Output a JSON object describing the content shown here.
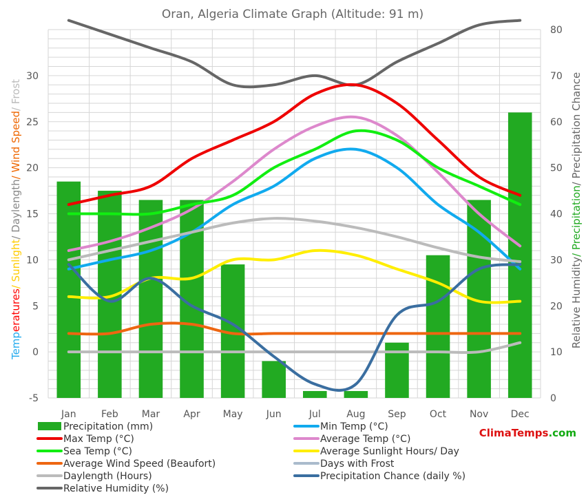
{
  "chart_data": {
    "type": "line",
    "title": "Oran, Algeria Climate Graph (Altitude: 91 m)",
    "categories": [
      "Jan",
      "Feb",
      "Mar",
      "Apr",
      "May",
      "Jun",
      "Jul",
      "Aug",
      "Sep",
      "Oct",
      "Nov",
      "Dec"
    ],
    "left_axis": {
      "range": [
        -5,
        35
      ],
      "ticks": [
        -5,
        0,
        5,
        10,
        15,
        20,
        25,
        30
      ],
      "label_parts": [
        {
          "text": "Temperatures",
          "color": "#22aaee",
          "split": 4,
          "color2": "#ff0000"
        },
        {
          "text": "/ Sunlight",
          "color": "#ffcc00"
        },
        {
          "text": "/ Daylength",
          "color": "#888888"
        },
        {
          "text": "/ Wind Speed",
          "color": "#ee6600"
        },
        {
          "text": "/ Frost",
          "color": "#bbbbbb"
        }
      ]
    },
    "right_axis": {
      "range": [
        0,
        80
      ],
      "ticks": [
        0,
        10,
        20,
        30,
        40,
        50,
        60,
        70,
        80
      ],
      "label_parts": [
        {
          "text": "Relative Humidity",
          "color": "#666666"
        },
        {
          "text": "/ Precipitation",
          "color": "#22aa22"
        },
        {
          "text": "/ Precipitation Chance",
          "color": "#666666"
        }
      ]
    },
    "bars": {
      "name": "Precipitation (mm)",
      "axis": "right",
      "color": "#22aa22",
      "values": [
        47,
        45,
        43,
        43,
        29,
        8,
        1.5,
        1.5,
        12,
        31,
        43,
        62
      ]
    },
    "series": [
      {
        "name": "Relative Humidity (%)",
        "axis": "right",
        "color": "#666666",
        "values": [
          82,
          79,
          76,
          73,
          68,
          68,
          70,
          68,
          73,
          77,
          81,
          82
        ]
      },
      {
        "name": "Max Temp (°C)",
        "axis": "left",
        "color": "#ee0000",
        "values": [
          16,
          17,
          18,
          21,
          23,
          25,
          28,
          29,
          27,
          23,
          19,
          17
        ]
      },
      {
        "name": "Average Temp (°C)",
        "axis": "left",
        "color": "#dd88cc",
        "values": [
          11,
          12,
          13.5,
          15.5,
          18.5,
          22,
          24.5,
          25.5,
          23.5,
          19.5,
          15,
          11.5
        ]
      },
      {
        "name": "Sea Temp (°C)",
        "axis": "left",
        "color": "#11ee11",
        "values": [
          15,
          15,
          15,
          16,
          17,
          20,
          22,
          24,
          23,
          20,
          18,
          16
        ]
      },
      {
        "name": "Min Temp (°C)",
        "axis": "left",
        "color": "#11aaee",
        "values": [
          9,
          10,
          11,
          13,
          16,
          18,
          21,
          22,
          20,
          16,
          13,
          9
        ]
      },
      {
        "name": "Daylength (Hours)",
        "axis": "left",
        "color": "#bbbbbb",
        "values": [
          10,
          11,
          12,
          13,
          14,
          14.5,
          14.2,
          13.5,
          12.5,
          11.3,
          10.3,
          9.8
        ]
      },
      {
        "name": "Average Sunlight Hours/ Day",
        "axis": "left",
        "color": "#ffee00",
        "values": [
          6,
          6,
          8,
          8,
          10,
          10,
          11,
          10.5,
          9,
          7.5,
          5.5,
          5.5
        ]
      },
      {
        "name": "Average Wind Speed (Beaufort)",
        "axis": "left",
        "color": "#ee6611",
        "values": [
          2,
          2,
          3,
          3,
          2,
          2,
          2,
          2,
          2,
          2,
          2,
          2
        ]
      },
      {
        "name": "Days with Frost",
        "axis": "left",
        "color": "#bbbbbb",
        "values": [
          0,
          0,
          0,
          0,
          0,
          0,
          0,
          0,
          0,
          0,
          0,
          1
        ]
      },
      {
        "name": "Precipitation Chance (daily %)",
        "axis": "right",
        "color": "#3a6ea0",
        "values": [
          29,
          21,
          26,
          20,
          16,
          9,
          3,
          3,
          18,
          21,
          28,
          29
        ]
      }
    ],
    "legend": {
      "placement": "bottom",
      "items": [
        {
          "label": "Precipitation (mm)",
          "color": "#22aa22",
          "kind": "box"
        },
        {
          "label": "Min Temp (°C)",
          "color": "#11aaee",
          "kind": "line"
        },
        {
          "label": "Max Temp (°C)",
          "color": "#ee0000",
          "kind": "line"
        },
        {
          "label": "Average Temp (°C)",
          "color": "#dd88cc",
          "kind": "line"
        },
        {
          "label": "Sea Temp (°C)",
          "color": "#11ee11",
          "kind": "line"
        },
        {
          "label": "Average Sunlight Hours/ Day",
          "color": "#ffee00",
          "kind": "line"
        },
        {
          "label": "Average Wind Speed (Beaufort)",
          "color": "#ee6611",
          "kind": "line"
        },
        {
          "label": "Days with Frost",
          "color": "#aabbcc",
          "kind": "line"
        },
        {
          "label": "Daylength (Hours)",
          "color": "#bbbbbb",
          "kind": "line"
        },
        {
          "label": "Precipitation Chance (daily %)",
          "color": "#3a6ea0",
          "kind": "line"
        },
        {
          "label": "Relative Humidity (%)",
          "color": "#666666",
          "kind": "line"
        }
      ]
    },
    "grid": true
  },
  "brand": {
    "parts": [
      {
        "text": "Clima",
        "color": "#dd1111"
      },
      {
        "text": "Temps",
        "color": "#dd1111"
      },
      {
        "text": ".com",
        "color": "#11aa11"
      }
    ]
  }
}
